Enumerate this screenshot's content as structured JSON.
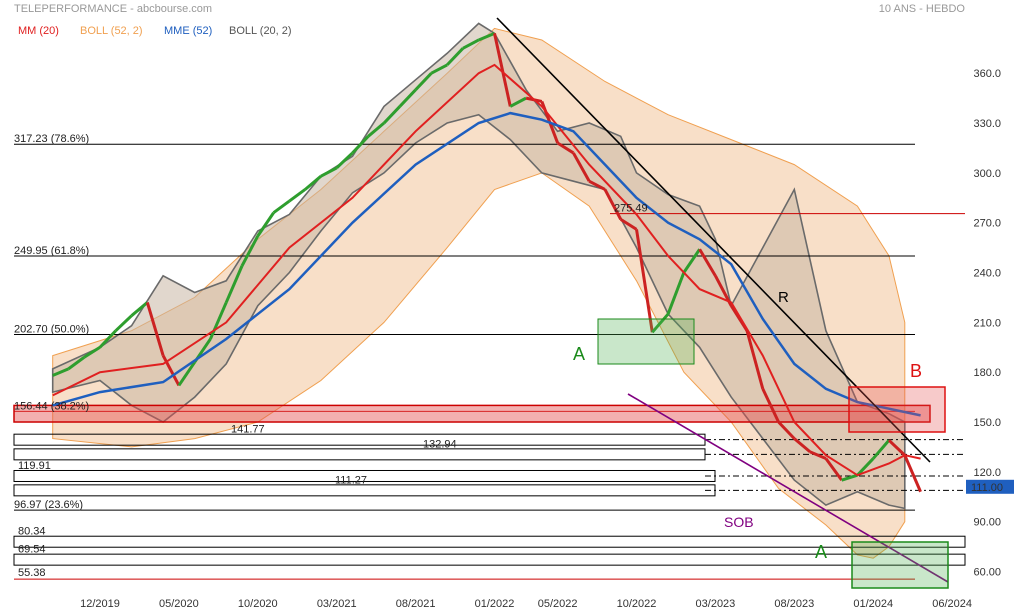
{
  "header": {
    "title": "TELEPERFORMANCE - abcbourse.com",
    "period": "10 ANS - HEBDO"
  },
  "legend": [
    {
      "label": "MM (20)",
      "color": "#e02020"
    },
    {
      "label": "BOLL (52, 2)",
      "color": "#f0a050"
    },
    {
      "label": "MME (52)",
      "color": "#1f5fbf"
    },
    {
      "label": "BOLL (20, 2)",
      "color": "#555555"
    }
  ],
  "chart_data": {
    "type": "line",
    "ylim": [
      50,
      385
    ],
    "y_ticks": [
      "360.0",
      "330.0",
      "300.0",
      "270.0",
      "240.0",
      "210.0",
      "180.0",
      "150.0",
      "120.0",
      "90.00",
      "60.00"
    ],
    "y_tick_values": [
      360,
      330,
      300,
      270,
      240,
      210,
      180,
      150,
      120,
      90,
      60
    ],
    "x_ticks": [
      "12/2019",
      "05/2020",
      "10/2020",
      "03/2021",
      "08/2021",
      "01/2022",
      "05/2022",
      "10/2022",
      "03/2023",
      "08/2023",
      "01/2024",
      "06/2024"
    ],
    "x_tick_months": [
      0,
      5,
      10,
      15,
      20,
      25,
      29,
      34,
      39,
      44,
      49,
      54
    ],
    "last_price": "111.00",
    "last_price_value": 111,
    "levels": [
      {
        "label": "317.23  (78.6%)",
        "value": 317.23,
        "color": "#000000"
      },
      {
        "label": "249.95  (61.8%)",
        "value": 249.95,
        "color": "#000000"
      },
      {
        "label": "202.70  (50.0%)",
        "value": 202.7,
        "color": "#000000"
      },
      {
        "label": "156.44  (38.2%)",
        "value": 156.44,
        "color": "#cc0000"
      },
      {
        "label": "96.97  (23.6%)",
        "value": 96.97,
        "color": "#000000"
      },
      {
        "label": "55.38",
        "value": 55.38,
        "color": "#cc0000"
      },
      {
        "label": "275.49",
        "value": 275.49,
        "color": "#cc0000"
      }
    ],
    "boxes": [
      {
        "label": "141.77",
        "value": 141.77
      },
      {
        "label": "132.94",
        "value": 132.94
      },
      {
        "label": "119.91",
        "value": 119.91
      },
      {
        "label": "111.27",
        "value": 111.27
      },
      {
        "label": "80.34",
        "value": 80.34
      },
      {
        "label": "69.54",
        "value": 69.54
      }
    ],
    "annotations": [
      {
        "label": "A",
        "color": "#1a8a1a"
      },
      {
        "label": "B",
        "color": "#dd1111"
      },
      {
        "label": "R",
        "color": "#000000"
      },
      {
        "label": "SOB",
        "color": "#800080"
      },
      {
        "label": "A",
        "color": "#1a8a1a"
      }
    ],
    "price_path": [
      [
        -3,
        178
      ],
      [
        -2,
        182
      ],
      [
        -1,
        189
      ],
      [
        0,
        195
      ],
      [
        1,
        205
      ],
      [
        2,
        214
      ],
      [
        3,
        222
      ],
      [
        4,
        190
      ],
      [
        5,
        172
      ],
      [
        6,
        186
      ],
      [
        7,
        200
      ],
      [
        8,
        222
      ],
      [
        9,
        244
      ],
      [
        10,
        262
      ],
      [
        11,
        276
      ],
      [
        12,
        283
      ],
      [
        13,
        290
      ],
      [
        14,
        298
      ],
      [
        15,
        303
      ],
      [
        16,
        312
      ],
      [
        17,
        322
      ],
      [
        18,
        330
      ],
      [
        19,
        340
      ],
      [
        20,
        350
      ],
      [
        21,
        360
      ],
      [
        22,
        365
      ],
      [
        23,
        375
      ],
      [
        24,
        380
      ],
      [
        25,
        384
      ],
      [
        26,
        340
      ],
      [
        27,
        345
      ],
      [
        28,
        343
      ],
      [
        29,
        318
      ],
      [
        30,
        312
      ],
      [
        31,
        295
      ],
      [
        32,
        290
      ],
      [
        33,
        272
      ],
      [
        34,
        266
      ],
      [
        35,
        204
      ],
      [
        36,
        215
      ],
      [
        37,
        240
      ],
      [
        38,
        254
      ],
      [
        39,
        238
      ],
      [
        40,
        220
      ],
      [
        41,
        205
      ],
      [
        42,
        170
      ],
      [
        43,
        150
      ],
      [
        44,
        140
      ],
      [
        45,
        132
      ],
      [
        46,
        128
      ],
      [
        47,
        115
      ],
      [
        48,
        118
      ],
      [
        49,
        128
      ],
      [
        50,
        139
      ],
      [
        51,
        130
      ],
      [
        52,
        108
      ]
    ],
    "mm20": [
      [
        -3,
        166
      ],
      [
        0,
        180
      ],
      [
        4,
        185
      ],
      [
        8,
        210
      ],
      [
        12,
        255
      ],
      [
        16,
        285
      ],
      [
        20,
        325
      ],
      [
        24,
        360
      ],
      [
        25,
        365
      ],
      [
        28,
        340
      ],
      [
        31,
        305
      ],
      [
        34,
        275
      ],
      [
        36,
        250
      ],
      [
        38,
        230
      ],
      [
        40,
        222
      ],
      [
        42,
        190
      ],
      [
        44,
        150
      ],
      [
        46,
        130
      ],
      [
        48,
        118
      ],
      [
        50,
        125
      ],
      [
        51,
        130
      ],
      [
        52,
        128
      ]
    ],
    "mme52": [
      [
        -3,
        160
      ],
      [
        0,
        168
      ],
      [
        4,
        174
      ],
      [
        8,
        200
      ],
      [
        12,
        230
      ],
      [
        16,
        270
      ],
      [
        20,
        305
      ],
      [
        24,
        330
      ],
      [
        26,
        336
      ],
      [
        28,
        332
      ],
      [
        30,
        325
      ],
      [
        32,
        305
      ],
      [
        34,
        285
      ],
      [
        36,
        270
      ],
      [
        38,
        260
      ],
      [
        40,
        245
      ],
      [
        42,
        212
      ],
      [
        44,
        185
      ],
      [
        46,
        170
      ],
      [
        48,
        162
      ],
      [
        50,
        158
      ],
      [
        52,
        154
      ]
    ]
  }
}
